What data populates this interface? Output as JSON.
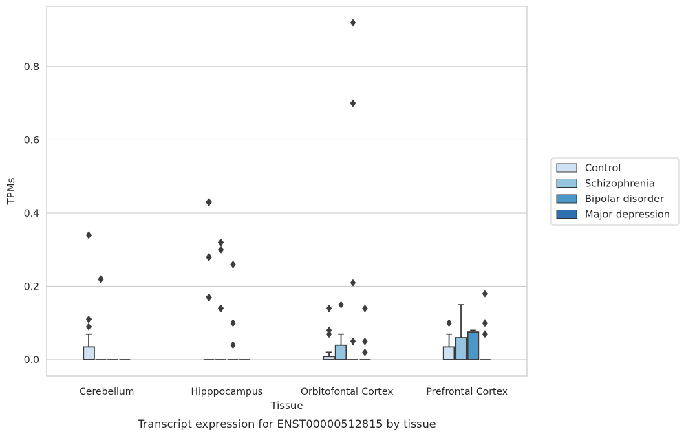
{
  "caption": "Transcript expression for ENST00000512815 by tissue",
  "chart_data": {
    "type": "box",
    "xlabel": "Tissue",
    "ylabel": "TPMs",
    "ylim": [
      -0.045,
      0.965
    ],
    "yticks": [
      0.0,
      0.2,
      0.4,
      0.6,
      0.8
    ],
    "ytick_labels": [
      "0.0",
      "0.2",
      "0.4",
      "0.6",
      "0.8"
    ],
    "grid": "horizontal",
    "legend_placement": "right",
    "categories": [
      "Cerebellum",
      "Hipppocampus",
      "Orbitofontal Cortex",
      "Prefrontal Cortex"
    ],
    "series": [
      {
        "name": "Control",
        "color": "#d0e1f2",
        "boxes": [
          {
            "q1": 0.0,
            "median": 0.0,
            "q3": 0.035,
            "whisker_low": 0.0,
            "whisker_high": 0.07,
            "outliers": [
              0.34,
              0.11,
              0.09
            ]
          },
          {
            "q1": 0.0,
            "median": 0.0,
            "q3": 0.0,
            "whisker_low": 0.0,
            "whisker_high": 0.0,
            "outliers": [
              0.43,
              0.28,
              0.17
            ]
          },
          {
            "q1": 0.0,
            "median": 0.0,
            "q3": 0.009,
            "whisker_low": 0.0,
            "whisker_high": 0.02,
            "outliers": [
              0.14,
              0.08,
              0.07
            ]
          },
          {
            "q1": 0.0,
            "median": 0.0,
            "q3": 0.035,
            "whisker_low": 0.0,
            "whisker_high": 0.07,
            "outliers": [
              0.1
            ]
          }
        ]
      },
      {
        "name": "Schizophrenia",
        "color": "#94c4df",
        "boxes": [
          {
            "q1": 0.0,
            "median": 0.0,
            "q3": 0.0,
            "whisker_low": 0.0,
            "whisker_high": 0.0,
            "outliers": [
              0.22
            ]
          },
          {
            "q1": 0.0,
            "median": 0.0,
            "q3": 0.0,
            "whisker_low": 0.0,
            "whisker_high": 0.0,
            "outliers": [
              0.32,
              0.3,
              0.14
            ]
          },
          {
            "q1": 0.0,
            "median": 0.0,
            "q3": 0.04,
            "whisker_low": 0.0,
            "whisker_high": 0.07,
            "outliers": [
              0.15
            ]
          },
          {
            "q1": 0.0,
            "median": 0.0,
            "q3": 0.06,
            "whisker_low": 0.0,
            "whisker_high": 0.15,
            "outliers": []
          }
        ]
      },
      {
        "name": "Bipolar disorder",
        "color": "#4a98c9",
        "boxes": [
          {
            "q1": 0.0,
            "median": 0.0,
            "q3": 0.0,
            "whisker_low": 0.0,
            "whisker_high": 0.0,
            "outliers": []
          },
          {
            "q1": 0.0,
            "median": 0.0,
            "q3": 0.0,
            "whisker_low": 0.0,
            "whisker_high": 0.0,
            "outliers": [
              0.26,
              0.1,
              0.04
            ]
          },
          {
            "q1": 0.0,
            "median": 0.0,
            "q3": 0.0,
            "whisker_low": 0.0,
            "whisker_high": 0.0,
            "outliers": [
              0.92,
              0.7,
              0.21,
              0.05
            ]
          },
          {
            "q1": 0.0,
            "median": 0.0,
            "q3": 0.075,
            "whisker_low": 0.0,
            "whisker_high": 0.08,
            "outliers": []
          }
        ]
      },
      {
        "name": "Major depression",
        "color": "#2e6fb0",
        "boxes": [
          {
            "q1": 0.0,
            "median": 0.0,
            "q3": 0.0,
            "whisker_low": 0.0,
            "whisker_high": 0.0,
            "outliers": []
          },
          {
            "q1": 0.0,
            "median": 0.0,
            "q3": 0.0,
            "whisker_low": 0.0,
            "whisker_high": 0.0,
            "outliers": []
          },
          {
            "q1": 0.0,
            "median": 0.0,
            "q3": 0.0,
            "whisker_low": 0.0,
            "whisker_high": 0.0,
            "outliers": [
              0.14,
              0.05,
              0.02
            ]
          },
          {
            "q1": 0.0,
            "median": 0.0,
            "q3": 0.0,
            "whisker_low": 0.0,
            "whisker_high": 0.0,
            "outliers": [
              0.18,
              0.1,
              0.07
            ]
          }
        ]
      }
    ]
  }
}
